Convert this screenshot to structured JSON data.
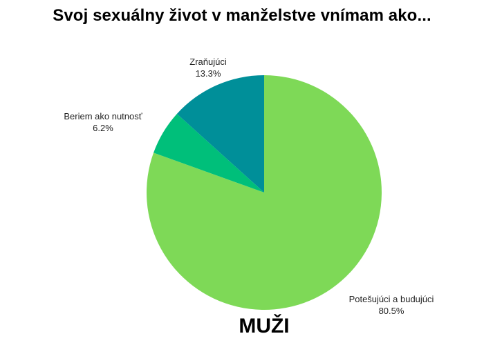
{
  "title": "Svoj sexuálny život v manželstve vnímam ako...",
  "subtitle": "MUŽI",
  "chart_data": {
    "type": "pie",
    "title": "Svoj sexuálny život v manželstve vnímam ako...",
    "start": "12 o'clock, clockwise",
    "slices": [
      {
        "label": "Potešujúci a budujúci",
        "value": 80.5,
        "display": "80.5%",
        "color": "#7ed957"
      },
      {
        "label": "Beriem ako nutnosť",
        "value": 6.2,
        "display": "6.2%",
        "color": "#00bf7a"
      },
      {
        "label": "Zraňujúci",
        "value": 13.3,
        "display": "13.3%",
        "color": "#008f99"
      }
    ]
  }
}
